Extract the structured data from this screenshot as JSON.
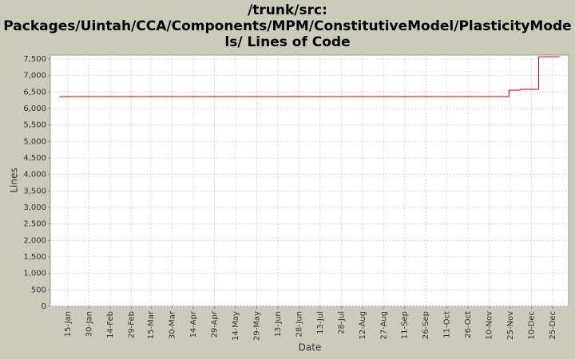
{
  "chart_data": {
    "type": "line",
    "title_lines": [
      "/trunk/src:",
      "Packages/Uintah/CCA/Components/MPM/ConstitutiveModel/PlasticityMode",
      "ls/ Lines of Code"
    ],
    "xlabel": "Date",
    "ylabel": "Lines",
    "xticks": [
      "15-Jan",
      "30-Jan",
      "14-Feb",
      "29-Feb",
      "15-Mar",
      "30-Mar",
      "14-Apr",
      "29-Apr",
      "14-May",
      "29-May",
      "13-Jun",
      "28-Jun",
      "13-Jul",
      "28-Jul",
      "12-Aug",
      "27-Aug",
      "11-Sep",
      "26-Sep",
      "11-Oct",
      "26-Oct",
      "10-Nov",
      "25-Nov",
      "10-Dec",
      "25-Dec"
    ],
    "ylim": [
      0,
      7620
    ],
    "yticks": [
      0,
      {
        "value": 500,
        "label": "500"
      },
      {
        "value": 1000,
        "label": "1,000"
      },
      {
        "value": 1500,
        "label": "1,500"
      },
      {
        "value": 2000,
        "label": "2,000"
      },
      {
        "value": 2500,
        "label": "2,500"
      },
      {
        "value": 3000,
        "label": "3,000"
      },
      {
        "value": 3500,
        "label": "3,500"
      },
      {
        "value": 4000,
        "label": "4,000"
      },
      {
        "value": 4500,
        "label": "4,500"
      },
      {
        "value": 5000,
        "label": "5,000"
      },
      {
        "value": 5500,
        "label": "5,500"
      },
      {
        "value": 6000,
        "label": "6,000"
      },
      {
        "value": 6500,
        "label": "6,500"
      },
      {
        "value": 7000,
        "label": "7,000"
      },
      {
        "value": 7500,
        "label": "7,500"
      }
    ],
    "grid": true,
    "step": true,
    "series": [
      {
        "name": "Lines of Code",
        "color": "#b00000",
        "x": [
          "9-Jan",
          "24-Nov",
          "2-Dec",
          "15-Dec",
          "30-Dec"
        ],
        "values": [
          6360,
          6555,
          6580,
          7570,
          7570
        ]
      }
    ]
  }
}
